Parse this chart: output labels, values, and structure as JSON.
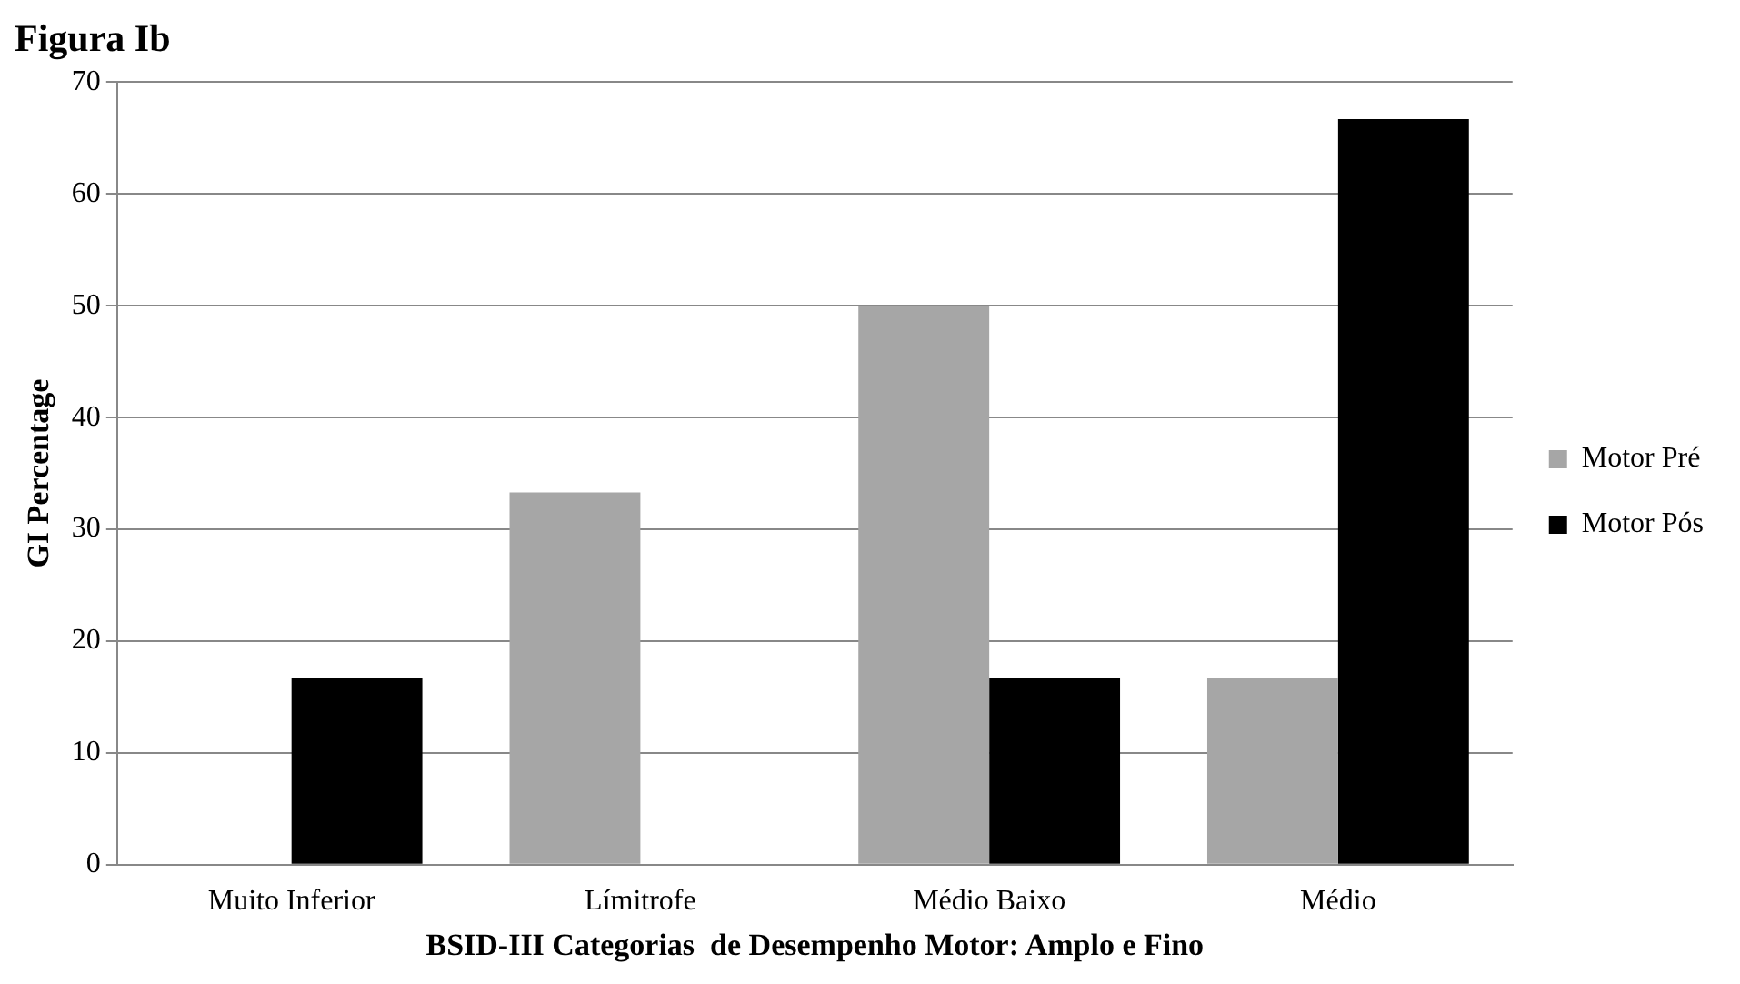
{
  "chart_data": {
    "type": "bar",
    "title": "Figura Ib",
    "xlabel": "BSID-III Categorias  de Desempenho Motor: Amplo e Fino",
    "ylabel": "GI Percentage",
    "categories": [
      "Muito Inferior",
      "Límitrofe",
      "Médio Baixo",
      "Médio"
    ],
    "series": [
      {
        "name": "Motor Pré",
        "color": "#a6a6a6",
        "values": [
          0,
          33.3,
          50.0,
          16.7
        ]
      },
      {
        "name": "Motor Pós",
        "color": "#000000",
        "values": [
          16.7,
          0,
          16.7,
          66.7
        ]
      }
    ],
    "ylim": [
      0,
      70
    ],
    "yticks": [
      0,
      10,
      20,
      30,
      40,
      50,
      60,
      70
    ],
    "grid": "y",
    "legend": "right"
  }
}
